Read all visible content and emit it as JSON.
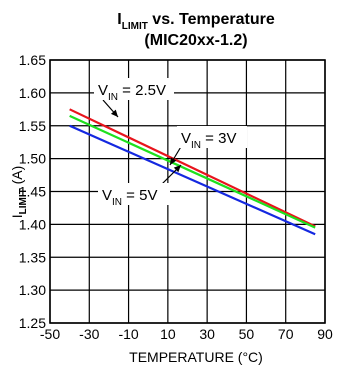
{
  "chart_data": {
    "type": "line",
    "title": {
      "main": "I",
      "main_sub": "LIMIT",
      "main_rest": " vs. Temperature",
      "line2": "(MIC20xx-1.2)"
    },
    "xlabel": "TEMPERATURE (°C)",
    "ylabel": {
      "main": "I",
      "sub": "LIMIT",
      "rest": " (A)"
    },
    "xlim": [
      -50,
      90
    ],
    "ylim": [
      1.25,
      1.65
    ],
    "xticks": [
      "-50",
      "-30",
      "-10",
      "10",
      "30",
      "50",
      "70",
      "90"
    ],
    "yticks": [
      "1.25",
      "1.30",
      "1.35",
      "1.40",
      "1.45",
      "1.50",
      "1.55",
      "1.60",
      "1.65"
    ],
    "grid": true,
    "series": [
      {
        "name": "V_IN = 2.5V",
        "color": "#e8141c",
        "x": [
          -40,
          85
        ],
        "y": [
          1.575,
          1.397
        ]
      },
      {
        "name": "V_IN = 3V",
        "color": "#1ee01e",
        "x": [
          -40,
          85
        ],
        "y": [
          1.565,
          1.395
        ]
      },
      {
        "name": "V_IN = 5V",
        "color": "#1428e0",
        "x": [
          -40,
          85
        ],
        "y": [
          1.55,
          1.385
        ]
      }
    ],
    "annotations": [
      {
        "pre": "V",
        "sub": "IN",
        "post": " = 2.5V"
      },
      {
        "pre": "V",
        "sub": "IN",
        "post": " = 3V"
      },
      {
        "pre": "V",
        "sub": "IN",
        "post": " = 5V"
      }
    ]
  }
}
